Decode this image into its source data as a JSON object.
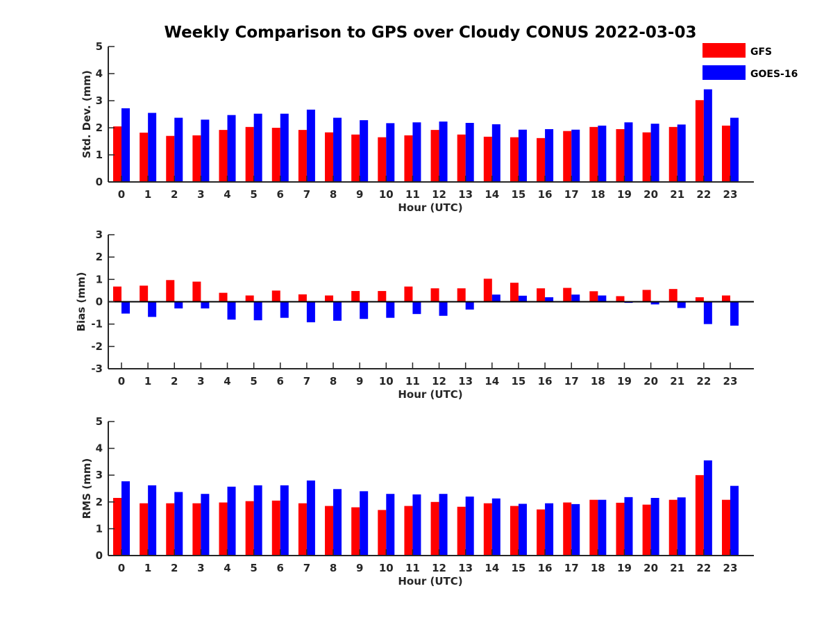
{
  "title": "Weekly Comparison to GPS over Cloudy CONUS 2022-03-03",
  "legend": {
    "items": [
      {
        "label": "GFS",
        "color": "#ff0000"
      },
      {
        "label": "GOES-16",
        "color": "#0000ff"
      }
    ]
  },
  "chart_data": [
    {
      "type": "bar",
      "title": "Weekly Comparison to GPS over Cloudy CONUS 2022-03-03",
      "xlabel": "Hour (UTC)",
      "ylabel": "Std. Dev. (mm)",
      "ylim": [
        0,
        5
      ],
      "yticks": [
        0,
        1,
        2,
        3,
        4,
        5
      ],
      "categories": [
        "0",
        "1",
        "2",
        "3",
        "4",
        "5",
        "6",
        "7",
        "8",
        "9",
        "10",
        "11",
        "12",
        "13",
        "14",
        "15",
        "16",
        "17",
        "18",
        "19",
        "20",
        "21",
        "22",
        "23"
      ],
      "series": [
        {
          "name": "GFS",
          "color": "#ff0000",
          "values": [
            2.05,
            1.82,
            1.7,
            1.72,
            1.92,
            2.03,
            2.0,
            1.92,
            1.83,
            1.75,
            1.65,
            1.72,
            1.92,
            1.75,
            1.67,
            1.65,
            1.62,
            1.88,
            2.03,
            1.95,
            1.83,
            2.03,
            3.02,
            2.08
          ]
        },
        {
          "name": "GOES-16",
          "color": "#0000ff",
          "values": [
            2.72,
            2.55,
            2.37,
            2.3,
            2.47,
            2.52,
            2.52,
            2.67,
            2.37,
            2.28,
            2.17,
            2.2,
            2.23,
            2.18,
            2.13,
            1.93,
            1.95,
            1.93,
            2.08,
            2.2,
            2.15,
            2.12,
            3.42,
            2.37
          ]
        }
      ],
      "legend": "top-right",
      "grid": false
    },
    {
      "type": "bar",
      "xlabel": "Hour (UTC)",
      "ylabel": "Bias (mm)",
      "ylim": [
        -3,
        3
      ],
      "yticks": [
        -3,
        -2,
        -1,
        0,
        1,
        2,
        3
      ],
      "categories": [
        "0",
        "1",
        "2",
        "3",
        "4",
        "5",
        "6",
        "7",
        "8",
        "9",
        "10",
        "11",
        "12",
        "13",
        "14",
        "15",
        "16",
        "17",
        "18",
        "19",
        "20",
        "21",
        "22",
        "23"
      ],
      "series": [
        {
          "name": "GFS",
          "color": "#ff0000",
          "values": [
            0.68,
            0.72,
            0.97,
            0.9,
            0.4,
            0.28,
            0.5,
            0.33,
            0.28,
            0.48,
            0.48,
            0.68,
            0.6,
            0.6,
            1.03,
            0.85,
            0.6,
            0.62,
            0.47,
            0.25,
            0.53,
            0.57,
            0.2,
            0.28
          ]
        },
        {
          "name": "GOES-16",
          "color": "#0000ff",
          "values": [
            -0.53,
            -0.68,
            -0.3,
            -0.3,
            -0.8,
            -0.83,
            -0.72,
            -0.92,
            -0.85,
            -0.77,
            -0.72,
            -0.55,
            -0.63,
            -0.35,
            0.32,
            0.27,
            0.2,
            0.32,
            0.28,
            -0.05,
            -0.12,
            -0.28,
            -1.0,
            -1.07
          ]
        }
      ],
      "grid": false
    },
    {
      "type": "bar",
      "xlabel": "Hour (UTC)",
      "ylabel": "RMS (mm)",
      "ylim": [
        0,
        5
      ],
      "yticks": [
        0,
        1,
        2,
        3,
        4,
        5
      ],
      "categories": [
        "0",
        "1",
        "2",
        "3",
        "4",
        "5",
        "6",
        "7",
        "8",
        "9",
        "10",
        "11",
        "12",
        "13",
        "14",
        "15",
        "16",
        "17",
        "18",
        "19",
        "20",
        "21",
        "22",
        "23"
      ],
      "series": [
        {
          "name": "GFS",
          "color": "#ff0000",
          "values": [
            2.15,
            1.95,
            1.95,
            1.95,
            1.98,
            2.03,
            2.05,
            1.95,
            1.85,
            1.8,
            1.7,
            1.85,
            2.0,
            1.82,
            1.95,
            1.85,
            1.72,
            1.98,
            2.08,
            1.97,
            1.9,
            2.08,
            3.0,
            2.08
          ]
        },
        {
          "name": "GOES-16",
          "color": "#0000ff",
          "values": [
            2.77,
            2.62,
            2.37,
            2.3,
            2.57,
            2.62,
            2.62,
            2.8,
            2.48,
            2.4,
            2.3,
            2.28,
            2.3,
            2.2,
            2.13,
            1.93,
            1.95,
            1.92,
            2.08,
            2.18,
            2.15,
            2.17,
            3.55,
            2.6
          ]
        }
      ],
      "grid": false
    }
  ]
}
